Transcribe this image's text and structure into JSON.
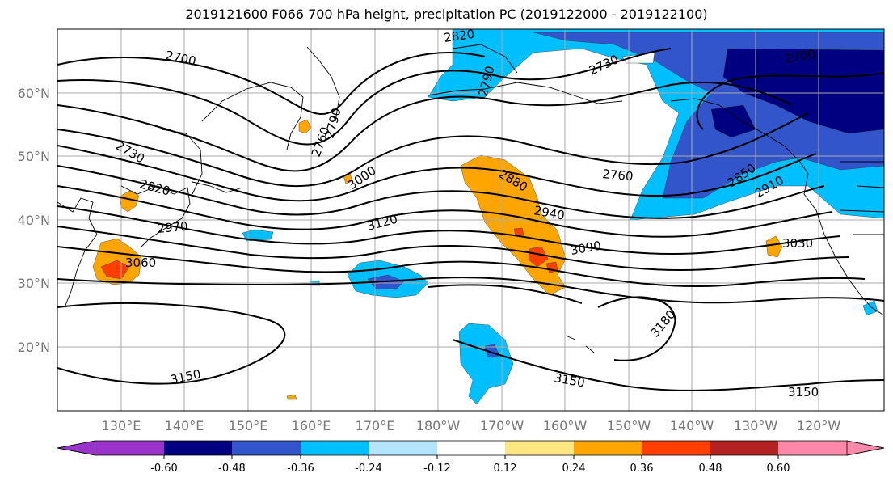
{
  "title": "2019121600 F066 700 hPa height, precipitation PC (2019122000 - 2019122100)",
  "colors": {
    "purple": "#9933cc",
    "navy": "#000080",
    "blue": "#3355cc",
    "sky": "#00bfff",
    "pale": "#b3e5ff",
    "white": "#ffffff",
    "yellow": "#ffe680",
    "orange": "#ffa500",
    "red_orange": "#ff3f00",
    "dark_red": "#b22222",
    "pink": "#ff88aa"
  },
  "lon_labels": [
    "130°E",
    "140°E",
    "150°E",
    "160°E",
    "170°E",
    "180°W",
    "170°W",
    "160°W",
    "150°W",
    "140°W",
    "130°W",
    "120°W"
  ],
  "lat_labels": [
    "60°N",
    "50°N",
    "40°N",
    "30°N",
    "20°N"
  ],
  "contour_labels": [
    "2700",
    "2730",
    "2820",
    "2970",
    "3060",
    "3150",
    "2820",
    "2790",
    "2730",
    "2700",
    "2760",
    "2850",
    "2910",
    "3030",
    "3090",
    "2880",
    "2940",
    "3120",
    "3000",
    "3180",
    "3150",
    "3150",
    "2760",
    "2790"
  ],
  "colorbar": {
    "ticks": [
      "-0.60",
      "-0.48",
      "-0.36",
      "-0.24",
      "-0.12",
      "0.12",
      "0.24",
      "0.36",
      "0.48",
      "0.60"
    ]
  }
}
